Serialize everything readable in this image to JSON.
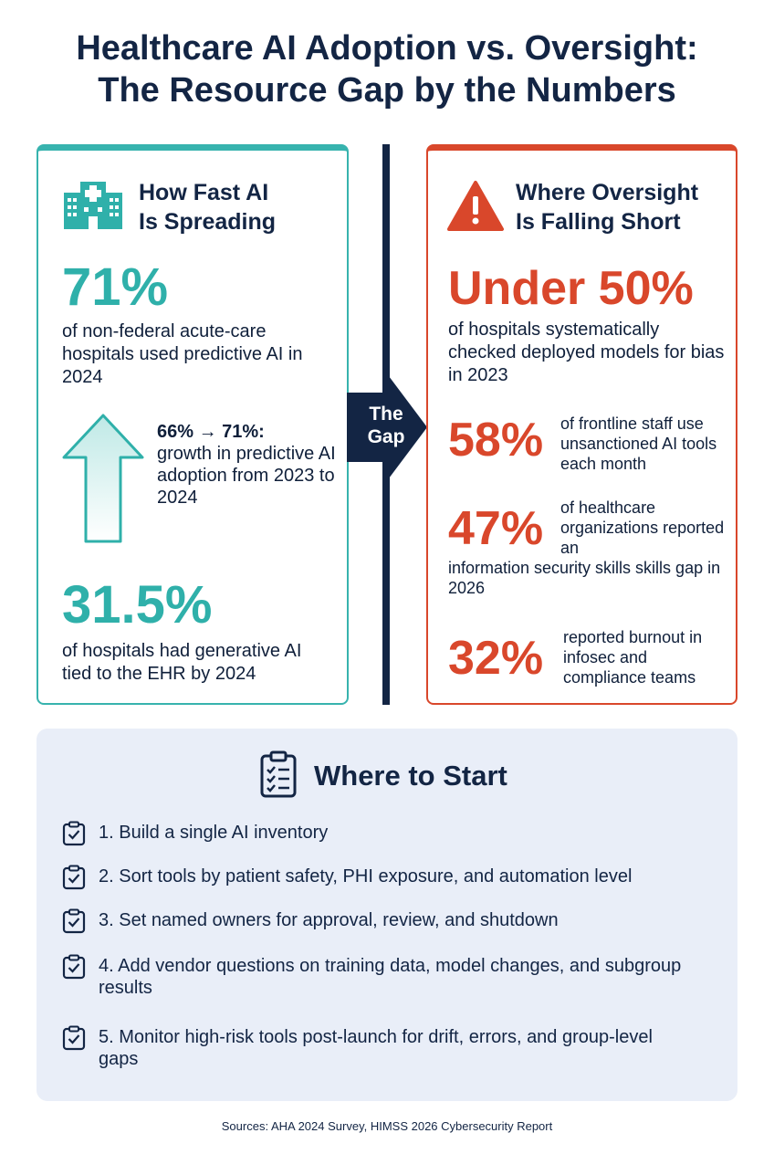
{
  "title": {
    "line1": "Healthcare AI Adoption vs. Oversight:",
    "line2": "The Resource Gap by the Numbers"
  },
  "adoption": {
    "heading_line1": "How Fast AI",
    "heading_line2": "Is Spreading",
    "icon": "hospital-icon",
    "accent_color": "#2fb0aa",
    "stat1_value": "71%",
    "stat1_desc": "of non-federal acute-care hospitals used predictive AI in 2024",
    "growth_heading": "66% → 71%:",
    "growth_desc": "growth in predictive AI adoption from 2023 to 2024",
    "stat2_value": "31.5%",
    "stat2_desc": "of hospitals had generative AI tied to the EHR by 2024"
  },
  "gap": {
    "line1": "The",
    "line2": "Gap"
  },
  "oversight": {
    "heading_line1": "Where Oversight",
    "heading_line2": "Is Falling Short",
    "icon": "warning-icon",
    "accent_color": "#d9472b",
    "stat1_value": "Under 50%",
    "stat1_desc": "of hospitals systematically checked deployed models for bias in 2023",
    "stat2_value": "58%",
    "stat2_desc": "of frontline staff use unsanctioned AI tools each month",
    "stat3_value": "47%",
    "stat3_desc_a": "of healthcare organizations reported an",
    "stat3_desc_b": "information security skills skills gap in 2026",
    "stat4_value": "32%",
    "stat4_desc": "reported burnout in infosec and compliance teams"
  },
  "start": {
    "heading": "Where to Start",
    "icon": "clipboard-icon",
    "steps": [
      "1.  Build a single AI inventory",
      "2.  Sort tools by patient safety, PHI exposure, and automation level",
      "3.  Set named owners for approval, review, and shutdown",
      "4.  Add vendor questions on training data, model changes, and subgroup results",
      "5.  Monitor high-risk tools post-launch for drift, errors, and group-level gaps"
    ]
  },
  "sources": "Sources: AHA 2024 Survey, HIMSS 2026 Cybersecurity Report"
}
